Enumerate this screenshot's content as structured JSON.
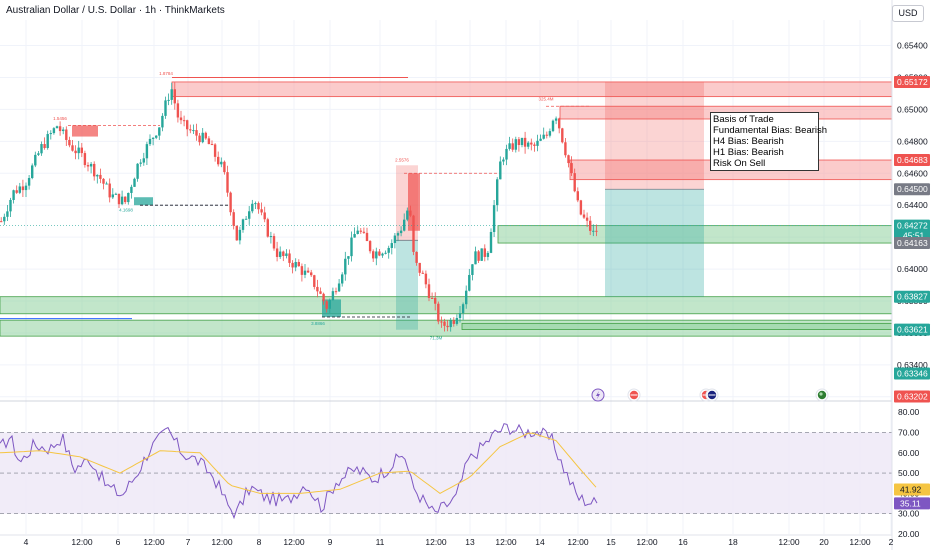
{
  "header": {
    "title": "Australian Dollar / U.S. Dollar · 1h · ThinkMarkets",
    "currency_label": "USD"
  },
  "note": {
    "lines": [
      "Basis of Trade",
      "Fundamental Bias: Bearish",
      "H4 Bias: Bearish",
      "H1 Bias: Bearish",
      "Risk On Sell"
    ]
  },
  "colors": {
    "bull": "#26a69a",
    "bear": "#ef5350",
    "supply_zone": "#f7a1a1",
    "demand_zone": "#8fd19e",
    "rsi_line": "#7e57c2",
    "rsi_ma": "#f5c542",
    "rsi_band": "#ede7f6"
  },
  "chart_data": [
    {
      "type": "candlestick",
      "symbol": "AUDUSD",
      "timeframe": "1h",
      "ylim": [
        0.6318,
        0.6556
      ],
      "y_ticks": [
        0.654,
        0.652,
        0.65,
        0.648,
        0.646,
        0.644,
        0.642,
        0.64,
        0.638,
        0.636,
        0.634,
        0.632
      ],
      "y_tick_labels": [
        "0.65400",
        "0.65200",
        "0.65000",
        "0.64800",
        "0.64600",
        "0.64400",
        "0.64200",
        "0.64000",
        "0.63800",
        "0.63600",
        "0.63400",
        "0.63200"
      ],
      "price_badges": [
        {
          "label": "0.65172",
          "value": 0.65172,
          "color": "#ef5350"
        },
        {
          "label": "0.64683",
          "value": 0.64683,
          "color": "#ef5350"
        },
        {
          "label": "0.64500",
          "value": 0.645,
          "color": "#787b86"
        },
        {
          "label": "0.64272",
          "value": 0.64272,
          "color": "#26a69a",
          "sub": "45:51"
        },
        {
          "label": "0.64163",
          "value": 0.64163,
          "color": "#787b86"
        },
        {
          "label": "0.63827",
          "value": 0.63827,
          "color": "#26a69a"
        },
        {
          "label": "0.63621",
          "value": 0.63621,
          "color": "#26a69a"
        },
        {
          "label": "0.63346",
          "value": 0.63346,
          "color": "#26a69a"
        },
        {
          "label": "0.63202",
          "value": 0.63202,
          "color": "#ef5350"
        }
      ],
      "x_tick_labels": [
        "4",
        "12:00",
        "6",
        "12:00",
        "7",
        "12:00",
        "8",
        "12:00",
        "9",
        "11",
        "12:00",
        "13",
        "12:00",
        "14",
        "12:00",
        "15",
        "12:00",
        "16",
        "18",
        "12:00",
        "20",
        "12:00",
        "2"
      ],
      "anchors": [
        {
          "t": 0,
          "p": 0.643
        },
        {
          "t": 12,
          "p": 0.6448
        },
        {
          "t": 24,
          "p": 0.6454
        },
        {
          "t": 40,
          "p": 0.6476
        },
        {
          "t": 56,
          "p": 0.649
        },
        {
          "t": 68,
          "p": 0.6478
        },
        {
          "t": 82,
          "p": 0.647
        },
        {
          "t": 98,
          "p": 0.6458
        },
        {
          "t": 110,
          "p": 0.6446
        },
        {
          "t": 124,
          "p": 0.6442
        },
        {
          "t": 138,
          "p": 0.6468
        },
        {
          "t": 158,
          "p": 0.649
        },
        {
          "t": 170,
          "p": 0.6514
        },
        {
          "t": 178,
          "p": 0.6492
        },
        {
          "t": 190,
          "p": 0.6486
        },
        {
          "t": 206,
          "p": 0.648
        },
        {
          "t": 222,
          "p": 0.6462
        },
        {
          "t": 236,
          "p": 0.6418
        },
        {
          "t": 252,
          "p": 0.6446
        },
        {
          "t": 262,
          "p": 0.643
        },
        {
          "t": 276,
          "p": 0.641
        },
        {
          "t": 296,
          "p": 0.6402
        },
        {
          "t": 312,
          "p": 0.6392
        },
        {
          "t": 326,
          "p": 0.6376
        },
        {
          "t": 340,
          "p": 0.6398
        },
        {
          "t": 356,
          "p": 0.6426
        },
        {
          "t": 372,
          "p": 0.641
        },
        {
          "t": 388,
          "p": 0.6414
        },
        {
          "t": 400,
          "p": 0.6426
        },
        {
          "t": 408,
          "p": 0.644
        },
        {
          "t": 413,
          "p": 0.6404
        },
        {
          "t": 420,
          "p": 0.6398
        },
        {
          "t": 430,
          "p": 0.6382
        },
        {
          "t": 440,
          "p": 0.6364
        },
        {
          "t": 452,
          "p": 0.6368
        },
        {
          "t": 462,
          "p": 0.638
        },
        {
          "t": 472,
          "p": 0.6408
        },
        {
          "t": 486,
          "p": 0.641
        },
        {
          "t": 500,
          "p": 0.647
        },
        {
          "t": 516,
          "p": 0.648
        },
        {
          "t": 532,
          "p": 0.6476
        },
        {
          "t": 546,
          "p": 0.6484
        },
        {
          "t": 554,
          "p": 0.6499
        },
        {
          "t": 566,
          "p": 0.647
        },
        {
          "t": 578,
          "p": 0.6436
        },
        {
          "t": 592,
          "p": 0.6422
        },
        {
          "t": 598,
          "p": 0.6427
        }
      ],
      "zones": [
        {
          "kind": "supply",
          "t0": 172,
          "t1": 932,
          "p0": 0.6508,
          "p1": 0.65172
        },
        {
          "kind": "supply",
          "t0": 560,
          "t1": 932,
          "p0": 0.6494,
          "p1": 0.6502
        },
        {
          "kind": "supply",
          "t0": 570,
          "t1": 932,
          "p0": 0.6456,
          "p1": 0.64683
        },
        {
          "kind": "demand",
          "t0": 498,
          "t1": 932,
          "p0": 0.64163,
          "p1": 0.64272
        },
        {
          "kind": "demand",
          "t0": 0,
          "t1": 932,
          "p0": 0.6372,
          "p1": 0.63827
        },
        {
          "kind": "demand",
          "t0": 0,
          "t1": 932,
          "p0": 0.6358,
          "p1": 0.6368
        },
        {
          "kind": "demand",
          "t0": 462,
          "t1": 932,
          "p0": 0.63621,
          "p1": 0.6366
        }
      ],
      "order_blocks": [
        {
          "kind": "supply",
          "t0": 72,
          "t1": 98,
          "p0": 0.6483,
          "p1": 0.649
        },
        {
          "kind": "demand",
          "t0": 134,
          "t1": 153,
          "p0": 0.644,
          "p1": 0.6445
        },
        {
          "kind": "demand",
          "t0": 322,
          "t1": 341,
          "p0": 0.637,
          "p1": 0.6381
        },
        {
          "kind": "supply",
          "t0": 408,
          "t1": 420,
          "p0": 0.6424,
          "p1": 0.646
        }
      ],
      "trades": [
        {
          "t0": 396,
          "t1": 418,
          "entry": 0.6418,
          "stop": 0.6465,
          "target": 0.6362
        },
        {
          "t0": 605,
          "t1": 704,
          "entry": 0.645,
          "stop": 0.65172,
          "target": 0.63827
        }
      ],
      "swing_labels": [
        {
          "text": "1.5456",
          "t": 60,
          "p": 0.6491,
          "dir": "up"
        },
        {
          "text": "1.8784",
          "t": 166,
          "p": 0.6519,
          "dir": "up"
        },
        {
          "text": "4.1698",
          "t": 126,
          "p": 0.6441,
          "dir": "down"
        },
        {
          "text": "3.8866",
          "t": 318,
          "p": 0.637,
          "dir": "down"
        },
        {
          "text": "2.5576",
          "t": 402,
          "p": 0.6465,
          "dir": "up"
        },
        {
          "text": "71.3M",
          "t": 436,
          "p": 0.6361,
          "dir": "down"
        },
        {
          "text": "325.4M",
          "t": 546,
          "p": 0.6503,
          "dir": "up"
        }
      ],
      "event_icons": [
        {
          "name": "lightning-event-icon",
          "t": 598
        },
        {
          "name": "us-flag-event-icon",
          "t": 634
        },
        {
          "name": "us-flag-event-icon",
          "t": 706
        },
        {
          "name": "au-flag-event-icon",
          "t": 712
        },
        {
          "name": "globe-event-icon",
          "t": 822
        }
      ]
    },
    {
      "type": "line",
      "name": "RSI",
      "ylim": [
        20,
        85
      ],
      "band": [
        30,
        70
      ],
      "y_tick_labels": [
        "80.00",
        "70.00",
        "60.00",
        "50.00",
        "40.00",
        "30.00",
        "20.00"
      ],
      "y_ticks": [
        80,
        70,
        60,
        50,
        40,
        30,
        20
      ],
      "value_badges": [
        {
          "label": "41.92",
          "value": 41.92,
          "color": "#f5c542"
        },
        {
          "label": "35.11",
          "value": 35.11,
          "color": "#7e57c2"
        }
      ],
      "rsi_anchors": [
        {
          "t": 0,
          "v": 62
        },
        {
          "t": 10,
          "v": 68
        },
        {
          "t": 20,
          "v": 55
        },
        {
          "t": 34,
          "v": 64
        },
        {
          "t": 50,
          "v": 62
        },
        {
          "t": 62,
          "v": 68
        },
        {
          "t": 74,
          "v": 52
        },
        {
          "t": 90,
          "v": 57
        },
        {
          "t": 106,
          "v": 44
        },
        {
          "t": 122,
          "v": 39
        },
        {
          "t": 136,
          "v": 49
        },
        {
          "t": 150,
          "v": 62
        },
        {
          "t": 168,
          "v": 71
        },
        {
          "t": 182,
          "v": 60
        },
        {
          "t": 198,
          "v": 56
        },
        {
          "t": 214,
          "v": 48
        },
        {
          "t": 228,
          "v": 34
        },
        {
          "t": 236,
          "v": 30
        },
        {
          "t": 250,
          "v": 43
        },
        {
          "t": 266,
          "v": 38
        },
        {
          "t": 286,
          "v": 36
        },
        {
          "t": 306,
          "v": 45
        },
        {
          "t": 322,
          "v": 33
        },
        {
          "t": 336,
          "v": 46
        },
        {
          "t": 356,
          "v": 52
        },
        {
          "t": 374,
          "v": 47
        },
        {
          "t": 394,
          "v": 55
        },
        {
          "t": 404,
          "v": 60
        },
        {
          "t": 412,
          "v": 44
        },
        {
          "t": 424,
          "v": 36
        },
        {
          "t": 434,
          "v": 30
        },
        {
          "t": 446,
          "v": 34
        },
        {
          "t": 456,
          "v": 38
        },
        {
          "t": 468,
          "v": 56
        },
        {
          "t": 480,
          "v": 62
        },
        {
          "t": 496,
          "v": 70
        },
        {
          "t": 508,
          "v": 73
        },
        {
          "t": 522,
          "v": 70
        },
        {
          "t": 536,
          "v": 71
        },
        {
          "t": 552,
          "v": 66
        },
        {
          "t": 566,
          "v": 50
        },
        {
          "t": 578,
          "v": 38
        },
        {
          "t": 588,
          "v": 36
        },
        {
          "t": 598,
          "v": 35.11
        }
      ],
      "ma_anchors": [
        {
          "t": 0,
          "v": 60
        },
        {
          "t": 40,
          "v": 61
        },
        {
          "t": 80,
          "v": 58
        },
        {
          "t": 120,
          "v": 50
        },
        {
          "t": 160,
          "v": 61
        },
        {
          "t": 200,
          "v": 60
        },
        {
          "t": 230,
          "v": 44
        },
        {
          "t": 260,
          "v": 40
        },
        {
          "t": 300,
          "v": 40
        },
        {
          "t": 340,
          "v": 42
        },
        {
          "t": 380,
          "v": 50
        },
        {
          "t": 410,
          "v": 51
        },
        {
          "t": 440,
          "v": 40
        },
        {
          "t": 470,
          "v": 48
        },
        {
          "t": 500,
          "v": 63
        },
        {
          "t": 530,
          "v": 70
        },
        {
          "t": 556,
          "v": 66
        },
        {
          "t": 580,
          "v": 52
        },
        {
          "t": 598,
          "v": 41.92
        }
      ]
    }
  ]
}
